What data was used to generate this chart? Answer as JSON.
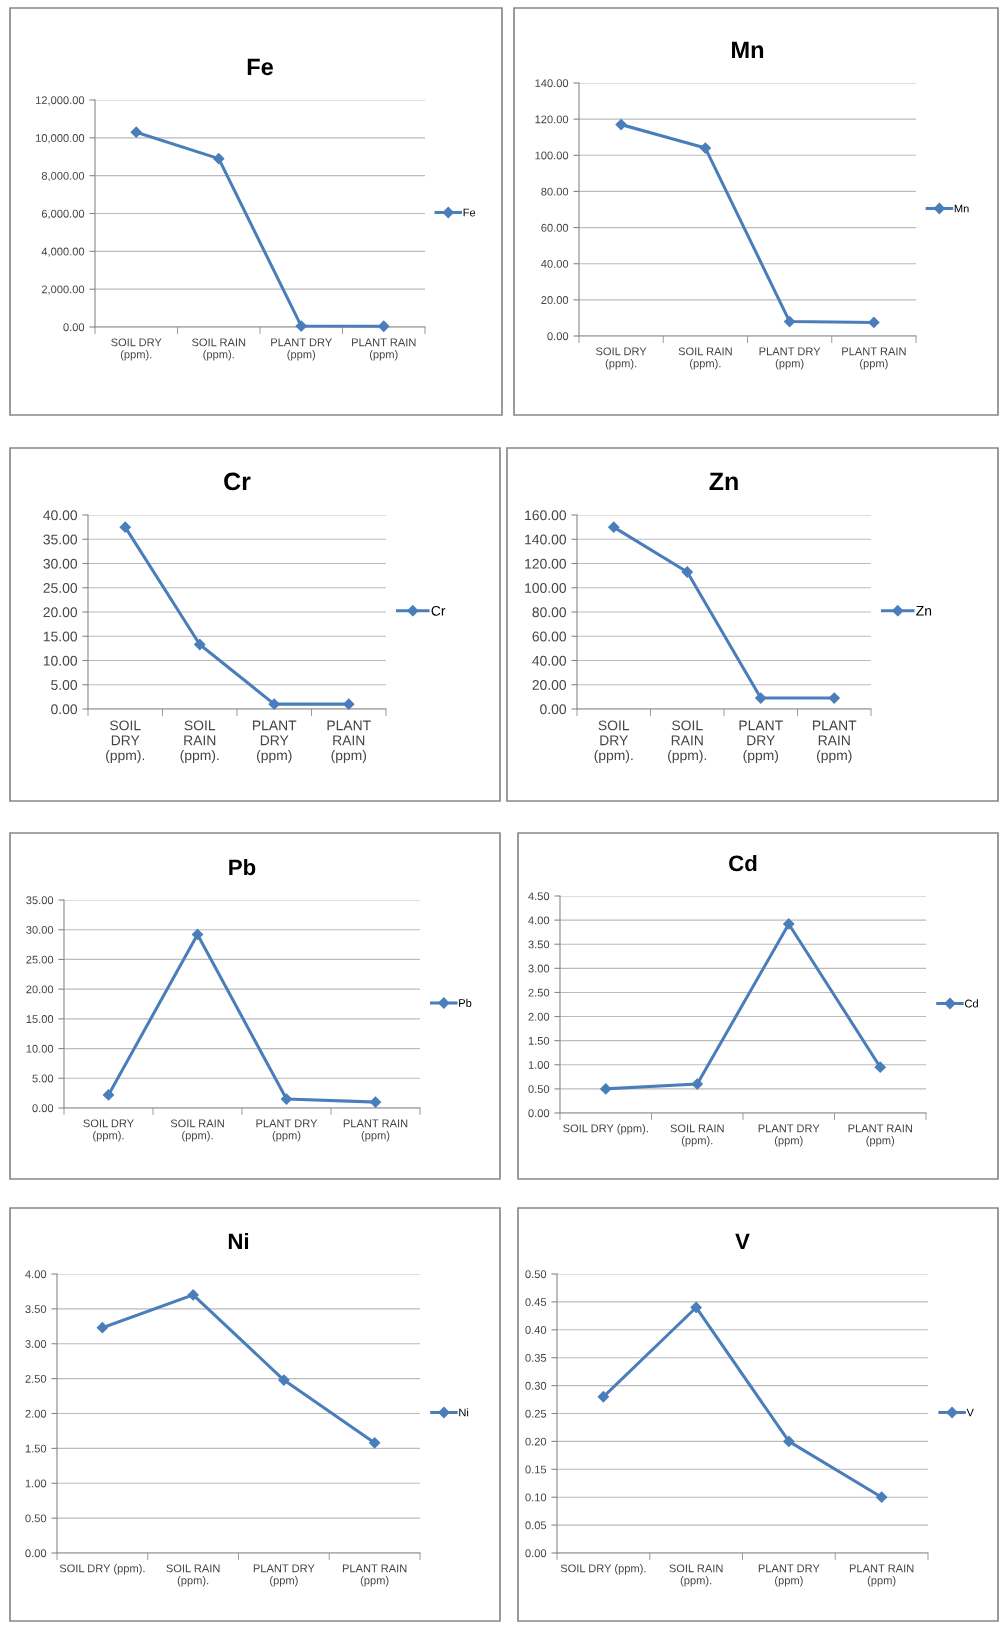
{
  "chart_data": [
    {
      "type": "line",
      "title": "Fe",
      "categories": [
        "SOIL DRY\n(ppm).",
        "SOIL RAIN\n(ppm).",
        "PLANT DRY\n(ppm)",
        "PLANT RAIN\n(ppm)"
      ],
      "series": [
        {
          "name": "Fe",
          "color": "#4a7ebb",
          "values": [
            10300,
            8900,
            50,
            40
          ]
        }
      ],
      "ylim": [
        0,
        12000
      ],
      "yticks": [
        {
          "value": 0,
          "label": "0.00"
        },
        {
          "value": 2000,
          "label": "2,000.00"
        },
        {
          "value": 4000,
          "label": "4,000.00"
        },
        {
          "value": 6000,
          "label": "6,000.00"
        },
        {
          "value": 8000,
          "label": "8,000.00"
        },
        {
          "value": 10000,
          "label": "10,000.00"
        },
        {
          "value": 12000,
          "label": "12,000.00"
        }
      ],
      "grid": "y",
      "legend": "right",
      "marker": "diamond"
    },
    {
      "type": "line",
      "title": "Mn",
      "categories": [
        "SOIL DRY\n(ppm).",
        "SOIL RAIN\n(ppm).",
        "PLANT DRY\n(ppm)",
        "PLANT RAIN\n(ppm)"
      ],
      "series": [
        {
          "name": "Mn",
          "color": "#4a7ebb",
          "values": [
            117,
            104,
            8,
            7.5
          ]
        }
      ],
      "ylim": [
        0,
        140
      ],
      "yticks": [
        {
          "value": 0,
          "label": "0.00"
        },
        {
          "value": 20,
          "label": "20.00"
        },
        {
          "value": 40,
          "label": "40.00"
        },
        {
          "value": 60,
          "label": "60.00"
        },
        {
          "value": 80,
          "label": "80.00"
        },
        {
          "value": 100,
          "label": "100.00"
        },
        {
          "value": 120,
          "label": "120.00"
        },
        {
          "value": 140,
          "label": "140.00"
        }
      ],
      "grid": "y",
      "legend": "right",
      "marker": "diamond"
    },
    {
      "type": "line",
      "title": "Cr",
      "categories": [
        "SOIL\nDRY\n(ppm).",
        "SOIL\nRAIN\n(ppm).",
        "PLANT\nDRY\n(ppm)",
        "PLANT\nRAIN\n(ppm)"
      ],
      "series": [
        {
          "name": "Cr",
          "color": "#4a7ebb",
          "values": [
            37.5,
            13.3,
            1.0,
            1.0
          ]
        }
      ],
      "ylim": [
        0,
        40
      ],
      "yticks": [
        {
          "value": 0,
          "label": "0.00"
        },
        {
          "value": 5,
          "label": "5.00"
        },
        {
          "value": 10,
          "label": "10.00"
        },
        {
          "value": 15,
          "label": "15.00"
        },
        {
          "value": 20,
          "label": "20.00"
        },
        {
          "value": 25,
          "label": "25.00"
        },
        {
          "value": 30,
          "label": "30.00"
        },
        {
          "value": 35,
          "label": "35.00"
        },
        {
          "value": 40,
          "label": "40.00"
        }
      ],
      "grid": "y",
      "legend": "right",
      "marker": "diamond"
    },
    {
      "type": "line",
      "title": "Zn",
      "categories": [
        "SOIL\nDRY\n(ppm).",
        "SOIL\nRAIN\n(ppm).",
        "PLANT\nDRY\n(ppm)",
        "PLANT\nRAIN\n(ppm)"
      ],
      "series": [
        {
          "name": "Zn",
          "color": "#4a7ebb",
          "values": [
            150,
            113,
            9,
            9
          ]
        }
      ],
      "ylim": [
        0,
        160
      ],
      "yticks": [
        {
          "value": 0,
          "label": "0.00"
        },
        {
          "value": 20,
          "label": "20.00"
        },
        {
          "value": 40,
          "label": "40.00"
        },
        {
          "value": 60,
          "label": "60.00"
        },
        {
          "value": 80,
          "label": "80.00"
        },
        {
          "value": 100,
          "label": "100.00"
        },
        {
          "value": 120,
          "label": "120.00"
        },
        {
          "value": 140,
          "label": "140.00"
        },
        {
          "value": 160,
          "label": "160.00"
        }
      ],
      "grid": "y",
      "legend": "right",
      "marker": "diamond"
    },
    {
      "type": "line",
      "title": "Pb",
      "categories": [
        "SOIL DRY\n(ppm).",
        "SOIL RAIN\n(ppm).",
        "PLANT DRY\n(ppm)",
        "PLANT RAIN\n(ppm)"
      ],
      "series": [
        {
          "name": "Pb",
          "color": "#4a7ebb",
          "values": [
            2.2,
            29.2,
            1.5,
            1.0
          ]
        }
      ],
      "ylim": [
        0,
        35
      ],
      "yticks": [
        {
          "value": 0,
          "label": "0.00"
        },
        {
          "value": 5,
          "label": "5.00"
        },
        {
          "value": 10,
          "label": "10.00"
        },
        {
          "value": 15,
          "label": "15.00"
        },
        {
          "value": 20,
          "label": "20.00"
        },
        {
          "value": 25,
          "label": "25.00"
        },
        {
          "value": 30,
          "label": "30.00"
        },
        {
          "value": 35,
          "label": "35.00"
        }
      ],
      "grid": "y",
      "legend": "right",
      "marker": "diamond"
    },
    {
      "type": "line",
      "title": "Cd",
      "categories": [
        "SOIL DRY (ppm).",
        "SOIL RAIN\n(ppm).",
        "PLANT DRY\n(ppm)",
        "PLANT RAIN\n(ppm)"
      ],
      "series": [
        {
          "name": "Cd",
          "color": "#4a7ebb",
          "values": [
            0.5,
            0.6,
            3.92,
            0.95
          ]
        }
      ],
      "ylim": [
        0,
        4.5
      ],
      "yticks": [
        {
          "value": 0,
          "label": "0.00"
        },
        {
          "value": 0.5,
          "label": "0.50"
        },
        {
          "value": 1,
          "label": "1.00"
        },
        {
          "value": 1.5,
          "label": "1.50"
        },
        {
          "value": 2,
          "label": "2.00"
        },
        {
          "value": 2.5,
          "label": "2.50"
        },
        {
          "value": 3,
          "label": "3.00"
        },
        {
          "value": 3.5,
          "label": "3.50"
        },
        {
          "value": 4,
          "label": "4.00"
        },
        {
          "value": 4.5,
          "label": "4.50"
        }
      ],
      "grid": "y",
      "legend": "right",
      "marker": "diamond"
    },
    {
      "type": "line",
      "title": "Ni",
      "categories": [
        "SOIL DRY (ppm).",
        "SOIL RAIN\n(ppm).",
        "PLANT DRY\n(ppm)",
        "PLANT RAIN\n(ppm)"
      ],
      "series": [
        {
          "name": "Ni",
          "color": "#4a7ebb",
          "values": [
            3.23,
            3.7,
            2.48,
            1.58
          ]
        }
      ],
      "ylim": [
        0,
        4
      ],
      "yticks": [
        {
          "value": 0,
          "label": "0.00"
        },
        {
          "value": 0.5,
          "label": "0.50"
        },
        {
          "value": 1,
          "label": "1.00"
        },
        {
          "value": 1.5,
          "label": "1.50"
        },
        {
          "value": 2,
          "label": "2.00"
        },
        {
          "value": 2.5,
          "label": "2.50"
        },
        {
          "value": 3,
          "label": "3.00"
        },
        {
          "value": 3.5,
          "label": "3.50"
        },
        {
          "value": 4,
          "label": "4.00"
        }
      ],
      "grid": "y",
      "legend": "right",
      "marker": "diamond"
    },
    {
      "type": "line",
      "title": "V",
      "categories": [
        "SOIL DRY (ppm).",
        "SOIL RAIN\n(ppm).",
        "PLANT DRY\n(ppm)",
        "PLANT RAIN\n(ppm)"
      ],
      "series": [
        {
          "name": "V",
          "color": "#4a7ebb",
          "values": [
            0.28,
            0.44,
            0.2,
            0.1
          ]
        }
      ],
      "ylim": [
        0,
        0.5
      ],
      "yticks": [
        {
          "value": 0,
          "label": "0.00"
        },
        {
          "value": 0.05,
          "label": "0.05"
        },
        {
          "value": 0.1,
          "label": "0.10"
        },
        {
          "value": 0.15,
          "label": "0.15"
        },
        {
          "value": 0.2,
          "label": "0.20"
        },
        {
          "value": 0.25,
          "label": "0.25"
        },
        {
          "value": 0.3,
          "label": "0.30"
        },
        {
          "value": 0.35,
          "label": "0.35"
        },
        {
          "value": 0.4,
          "label": "0.40"
        },
        {
          "value": 0.45,
          "label": "0.45"
        },
        {
          "value": 0.5,
          "label": "0.50"
        }
      ],
      "grid": "y",
      "legend": "right",
      "marker": "diamond"
    }
  ]
}
